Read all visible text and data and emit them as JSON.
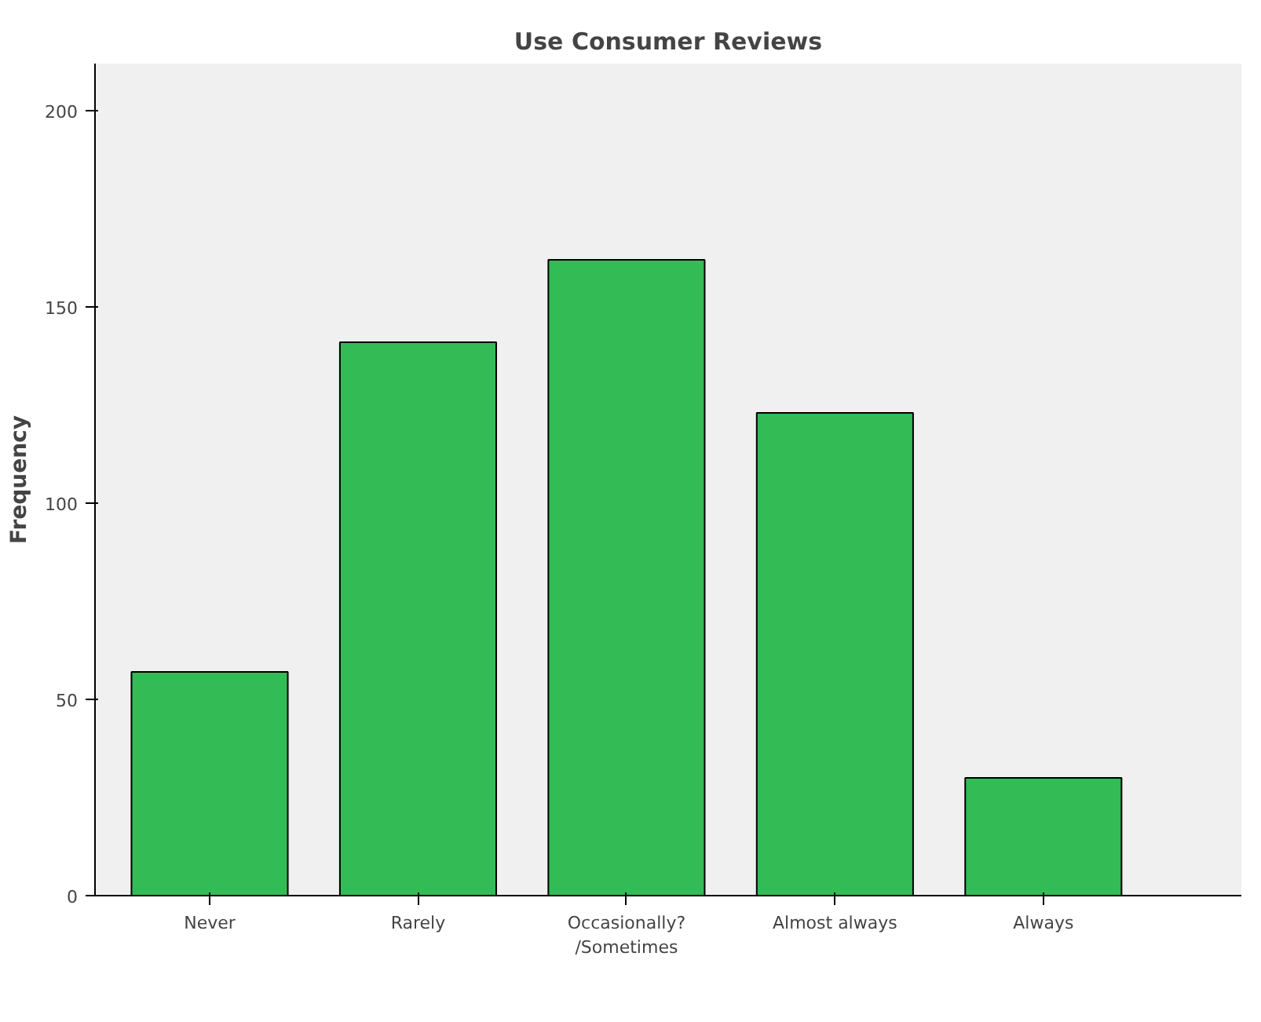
{
  "chart_data": {
    "type": "bar",
    "title": "Use Consumer Reviews",
    "ylabel": "Frequency",
    "categories": [
      "Never",
      "Rarely",
      "Occasionally?\n/Sometimes",
      "Almost always",
      "Always"
    ],
    "values": [
      57,
      141,
      162,
      123,
      30
    ],
    "color": "#33bb55",
    "ylim": [
      0,
      212
    ],
    "yticks": [
      0,
      50,
      100,
      150,
      200
    ],
    "grid": false
  }
}
